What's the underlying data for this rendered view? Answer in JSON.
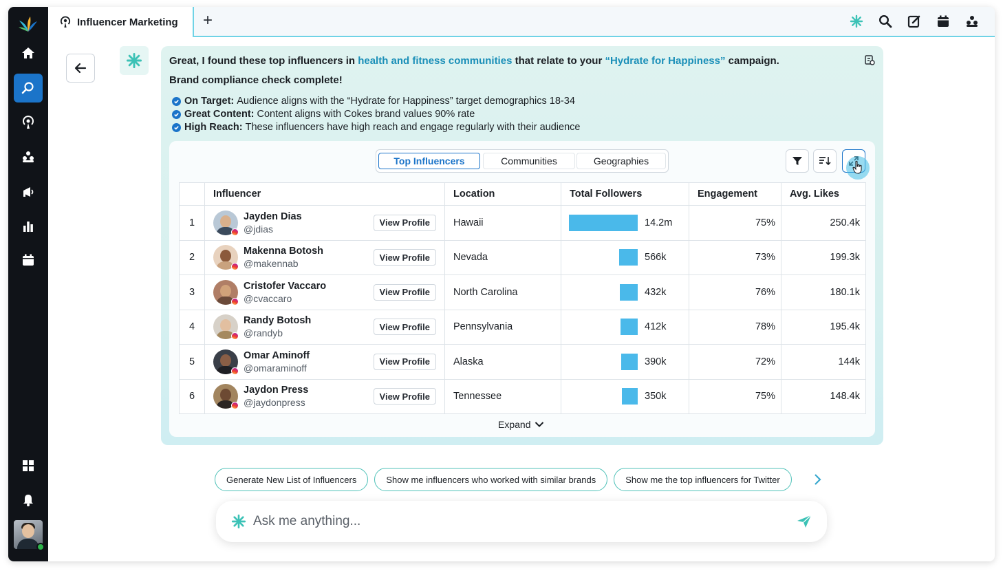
{
  "tab": {
    "title": "Influencer Marketing",
    "add_label": "+"
  },
  "message": {
    "intro_prefix": "Great, I found these top influencers in ",
    "intro_highlight1": "health and fitness communities",
    "intro_middle": " that relate to your ",
    "intro_highlight2": "“Hydrate for Happiness”",
    "intro_suffix": " campaign.",
    "compliance_title": "Brand compliance check complete!",
    "checks": [
      {
        "label": "On Target:",
        "text": "Audience aligns with the “Hydrate for Happiness” target demographics 18-34"
      },
      {
        "label": "Great Content:",
        "text": "Content aligns with Cokes brand values 90% rate"
      },
      {
        "label": "High Reach:",
        "text": "These influencers have high reach and engage regularly with their audience"
      }
    ]
  },
  "segments": [
    "Top Influencers",
    "Communities",
    "Geographies"
  ],
  "table": {
    "headers": [
      "Influencer",
      "Location",
      "Total Followers",
      "Engagement",
      "Avg. Likes"
    ],
    "view_profile_label": "View Profile",
    "rows": [
      {
        "idx": "1",
        "name": "Jayden Dias",
        "handle": "@jdias",
        "location": "Hawaii",
        "followers": "14.2m",
        "followers_share": 1.0,
        "engagement": "75%",
        "likes": "250.4k"
      },
      {
        "idx": "2",
        "name": "Makenna Botosh",
        "handle": "@makennab",
        "location": "Nevada",
        "followers": "566k",
        "followers_share": 0.27,
        "engagement": "73%",
        "likes": "199.3k"
      },
      {
        "idx": "3",
        "name": "Cristofer Vaccaro",
        "handle": "@cvaccaro",
        "location": "North Carolina",
        "followers": "432k",
        "followers_share": 0.26,
        "engagement": "76%",
        "likes": "180.1k"
      },
      {
        "idx": "4",
        "name": "Randy Botosh",
        "handle": "@randyb",
        "location": "Pennsylvania",
        "followers": "412k",
        "followers_share": 0.25,
        "engagement": "78%",
        "likes": "195.4k"
      },
      {
        "idx": "5",
        "name": "Omar Aminoff",
        "handle": "@omaraminoff",
        "location": "Alaska",
        "followers": "390k",
        "followers_share": 0.24,
        "engagement": "72%",
        "likes": "144k"
      },
      {
        "idx": "6",
        "name": "Jaydon Press",
        "handle": "@jaydonpress",
        "location": "Tennessee",
        "followers": "350k",
        "followers_share": 0.23,
        "engagement": "75%",
        "likes": "148.4k"
      }
    ],
    "expand_label": "Expand"
  },
  "suggestions": [
    "Generate New List of Influencers",
    "Show me influencers who worked with similar brands",
    "Show me the top influencers for Twitter"
  ],
  "prompt": {
    "placeholder": "Ask me anything..."
  },
  "colors": {
    "accent": "#1b74c9",
    "highlight": "#1a8fb8",
    "teal": "#4ec1b8",
    "bar": "#4ab9ea",
    "rail": "#101318"
  }
}
